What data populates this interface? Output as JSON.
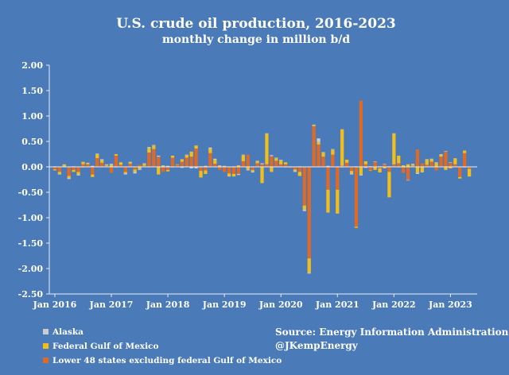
{
  "colors": {
    "background": "#4a7ab8",
    "alaska": "#c9ccd3",
    "gulf": "#f2be1a",
    "lower48": "#e06a24",
    "axis": "#e8eef6",
    "text": "#ffffff"
  },
  "chart_data": {
    "type": "bar",
    "stacked": true,
    "title": "U.S. crude oil production, 2016-2023",
    "subtitle": "monthly change in million b/d",
    "xlabel": "",
    "ylabel": "",
    "ylim": [
      -2.5,
      2.0
    ],
    "yticks": [
      2.0,
      1.5,
      1.0,
      0.5,
      0.0,
      -0.5,
      -1.0,
      -1.5,
      -2.0,
      -2.5
    ],
    "ytick_labels": [
      "2.00",
      "1.50",
      "1.00",
      "0.50",
      "0.00",
      "-0.50",
      "-1.00",
      "-1.50",
      "-2.00",
      "-2.50"
    ],
    "xtick_labels": [
      "Jan 2016",
      "Jan 2017",
      "Jan 2018",
      "Jan 2019",
      "Jan 2020",
      "Jan 2021",
      "Jan 2022",
      "Jan 2023"
    ],
    "start": "Jan 2016",
    "months": 89,
    "series": [
      {
        "name": "Alaska",
        "values": [
          0.01,
          -0.01,
          0.0,
          -0.02,
          0.01,
          -0.02,
          -0.01,
          0.01,
          0.02,
          0.01,
          0.02,
          0.01,
          0.02,
          -0.01,
          0.0,
          -0.02,
          0.01,
          -0.03,
          -0.02,
          0.01,
          0.02,
          0.01,
          0.02,
          0.01,
          0.02,
          -0.01,
          0.0,
          -0.02,
          0.01,
          -0.03,
          -0.03,
          0.01,
          0.02,
          0.02,
          0.02,
          0.01,
          0.01,
          -0.01,
          0.01,
          -0.02,
          0.01,
          -0.02,
          -0.02,
          0.01,
          0.02,
          0.01,
          0.02,
          0.01,
          0.01,
          -0.01,
          0.0,
          -0.02,
          0.01,
          -0.03,
          -0.02,
          0.01,
          0.07,
          0.01,
          0.02,
          0.01,
          0.01,
          -0.01,
          0.0,
          -0.02,
          0.01,
          -0.02,
          -0.02,
          0.01,
          0.01,
          0.01,
          0.01,
          0.01,
          0.01,
          -0.01,
          0.0,
          -0.01,
          0.01,
          -0.02,
          -0.01,
          0.01,
          0.01,
          0.01,
          0.01,
          0.01,
          0.01,
          0.0,
          0.0,
          -0.01,
          0.0
        ]
      },
      {
        "name": "Federal Gulf of Mexico",
        "values": [
          -0.02,
          -0.04,
          0.05,
          -0.04,
          -0.04,
          -0.05,
          0.05,
          0.02,
          -0.05,
          0.08,
          0.05,
          0.02,
          0.04,
          0.03,
          0.05,
          -0.03,
          0.03,
          -0.05,
          -0.04,
          0.04,
          0.09,
          0.07,
          -0.15,
          0.02,
          -0.03,
          0.04,
          0.01,
          0.05,
          0.05,
          0.1,
          0.06,
          -0.13,
          -0.07,
          0.09,
          0.08,
          0.02,
          0.01,
          -0.05,
          -0.05,
          0.03,
          0.12,
          -0.05,
          -0.03,
          0.04,
          -0.32,
          0.6,
          -0.1,
          0.05,
          0.08,
          0.04,
          0.01,
          -0.03,
          -0.08,
          -0.08,
          -0.28,
          0.02,
          0.05,
          0.08,
          -0.45,
          0.1,
          -0.47,
          0.72,
          0.06,
          -0.05,
          -0.02,
          -0.15,
          0.06,
          -0.01,
          -0.06,
          -0.08,
          -0.03,
          -0.5,
          0.6,
          0.15,
          0.03,
          0.05,
          0.03,
          -0.12,
          -0.1,
          0.1,
          0.05,
          0.08,
          0.04,
          -0.06,
          -0.03,
          0.12,
          -0.03,
          0.05,
          -0.15
        ]
      },
      {
        "name": "Lower 48 states excluding federal Gulf of Mexico",
        "values": [
          -0.05,
          -0.1,
          0.0,
          -0.18,
          -0.06,
          -0.1,
          0.05,
          0.05,
          -0.15,
          0.17,
          0.08,
          0.02,
          -0.12,
          0.22,
          0.04,
          -0.1,
          0.06,
          -0.05,
          0.04,
          0.02,
          0.28,
          0.35,
          0.2,
          -0.1,
          -0.06,
          0.18,
          0.04,
          0.1,
          0.18,
          0.2,
          0.36,
          -0.08,
          -0.07,
          0.27,
          0.06,
          -0.06,
          -0.1,
          -0.13,
          -0.14,
          -0.14,
          0.11,
          0.24,
          -0.06,
          0.07,
          0.05,
          0.05,
          0.21,
          0.12,
          0.05,
          0.05,
          -0.02,
          -0.05,
          -0.1,
          -0.76,
          -1.8,
          0.8,
          0.44,
          0.2,
          -0.45,
          0.24,
          -0.45,
          0.02,
          0.08,
          -0.08,
          -1.18,
          1.3,
          0.05,
          -0.07,
          0.1,
          -0.03,
          0.05,
          -0.1,
          0.05,
          0.07,
          -0.12,
          -0.26,
          0.02,
          0.34,
          0.07,
          0.04,
          0.1,
          -0.07,
          0.2,
          0.3,
          0.08,
          0.05,
          -0.2,
          0.27,
          -0.04
        ]
      }
    ],
    "legend": [
      "Alaska",
      "Federal Gulf of Mexico",
      "Lower 48 states excluding federal Gulf of Mexico"
    ],
    "legend_position": "bottom-left",
    "source": "Source:  Energy Information Administration",
    "credit": "@JKempEnergy"
  }
}
